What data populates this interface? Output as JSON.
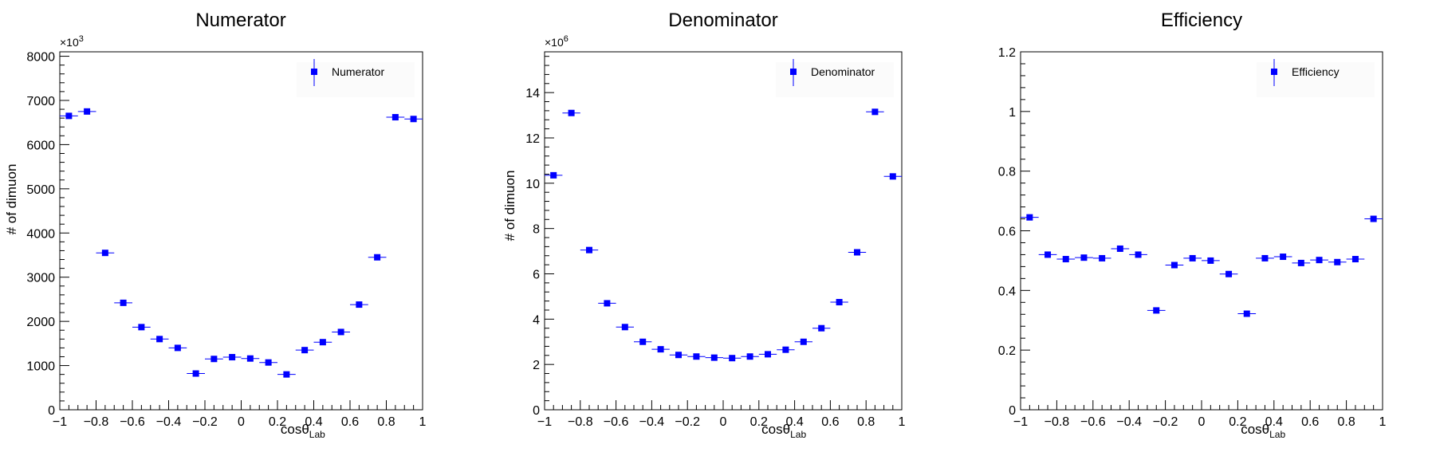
{
  "colors": {
    "marker": "#0000ff",
    "axis": "#000000",
    "background": "#ffffff"
  },
  "marker_icon": "filled-square-with-error-bar",
  "chart_data": [
    {
      "type": "scatter",
      "title": "Numerator",
      "xlabel": {
        "main": "cosθ",
        "sub": "Lab"
      },
      "ylabel": "# of dimuon",
      "y_multiplier": {
        "base": "×10",
        "exp": "3"
      },
      "legend": {
        "label": "Numerator",
        "position": "top-right"
      },
      "xlim": [
        -1,
        1
      ],
      "ylim": [
        0,
        8100
      ],
      "x_ticks": [
        -1,
        -0.8,
        -0.6,
        -0.4,
        -0.2,
        0,
        0.2,
        0.4,
        0.6,
        0.8,
        1
      ],
      "x_tick_labels": [
        "−1",
        "−0.8",
        "−0.6",
        "−0.4",
        "−0.2",
        "0",
        "0.2",
        "0.4",
        "0.6",
        "0.8",
        "1"
      ],
      "y_ticks": [
        0,
        1000,
        2000,
        3000,
        4000,
        5000,
        6000,
        7000,
        8000
      ],
      "y_tick_labels": [
        "0",
        "1000",
        "2000",
        "3000",
        "4000",
        "5000",
        "6000",
        "7000",
        "8000"
      ],
      "x_bin_half_width": 0.05,
      "x": [
        -0.95,
        -0.85,
        -0.75,
        -0.65,
        -0.55,
        -0.45,
        -0.35,
        -0.25,
        -0.15,
        -0.05,
        0.05,
        0.15,
        0.25,
        0.35,
        0.45,
        0.55,
        0.65,
        0.75,
        0.85,
        0.95
      ],
      "y": [
        6650,
        6750,
        3550,
        2420,
        1870,
        1600,
        1400,
        820,
        1150,
        1190,
        1160,
        1070,
        800,
        1350,
        1530,
        1760,
        2380,
        3450,
        6620,
        6580
      ]
    },
    {
      "type": "scatter",
      "title": "Denominator",
      "xlabel": {
        "main": "cosθ",
        "sub": "Lab"
      },
      "ylabel": "# of dimuon",
      "y_multiplier": {
        "base": "×10",
        "exp": "6"
      },
      "legend": {
        "label": "Denominator",
        "position": "top-right"
      },
      "xlim": [
        -1,
        1
      ],
      "ylim": [
        0,
        15.8
      ],
      "x_ticks": [
        -1,
        -0.8,
        -0.6,
        -0.4,
        -0.2,
        0,
        0.2,
        0.4,
        0.6,
        0.8,
        1
      ],
      "x_tick_labels": [
        "−1",
        "−0.8",
        "−0.6",
        "−0.4",
        "−0.2",
        "0",
        "0.2",
        "0.4",
        "0.6",
        "0.8",
        "1"
      ],
      "y_ticks": [
        0,
        2,
        4,
        6,
        8,
        10,
        12,
        14
      ],
      "y_tick_labels": [
        "0",
        "2",
        "4",
        "6",
        "8",
        "10",
        "12",
        "14"
      ],
      "x_bin_half_width": 0.05,
      "x": [
        -0.95,
        -0.85,
        -0.75,
        -0.65,
        -0.55,
        -0.45,
        -0.35,
        -0.25,
        -0.15,
        -0.05,
        0.05,
        0.15,
        0.25,
        0.35,
        0.45,
        0.55,
        0.65,
        0.75,
        0.85,
        0.95
      ],
      "y": [
        10.35,
        13.1,
        7.05,
        4.7,
        3.65,
        3.0,
        2.67,
        2.42,
        2.35,
        2.3,
        2.28,
        2.35,
        2.45,
        2.65,
        3.0,
        3.6,
        4.75,
        6.95,
        13.15,
        10.3
      ]
    },
    {
      "type": "scatter",
      "title": "Efficiency",
      "xlabel": {
        "main": "cosθ",
        "sub": "Lab"
      },
      "ylabel": "",
      "legend": {
        "label": "Efficiency",
        "position": "top-right"
      },
      "xlim": [
        -1,
        1
      ],
      "ylim": [
        0,
        1.2
      ],
      "x_ticks": [
        -1,
        -0.8,
        -0.6,
        -0.4,
        -0.2,
        0,
        0.2,
        0.4,
        0.6,
        0.8,
        1
      ],
      "x_tick_labels": [
        "−1",
        "−0.8",
        "−0.6",
        "−0.4",
        "−0.2",
        "0",
        "0.2",
        "0.4",
        "0.6",
        "0.8",
        "1"
      ],
      "y_ticks": [
        0,
        0.2,
        0.4,
        0.6,
        0.8,
        1,
        1.2
      ],
      "y_tick_labels": [
        "0",
        "0.2",
        "0.4",
        "0.6",
        "0.8",
        "1",
        "1.2"
      ],
      "x_bin_half_width": 0.05,
      "x": [
        -0.95,
        -0.85,
        -0.75,
        -0.65,
        -0.55,
        -0.45,
        -0.35,
        -0.25,
        -0.15,
        -0.05,
        0.05,
        0.15,
        0.25,
        0.35,
        0.45,
        0.55,
        0.65,
        0.75,
        0.85,
        0.95
      ],
      "y": [
        0.645,
        0.52,
        0.505,
        0.51,
        0.508,
        0.54,
        0.52,
        0.333,
        0.485,
        0.508,
        0.5,
        0.455,
        0.322,
        0.508,
        0.513,
        0.492,
        0.502,
        0.495,
        0.505,
        0.64
      ]
    }
  ]
}
